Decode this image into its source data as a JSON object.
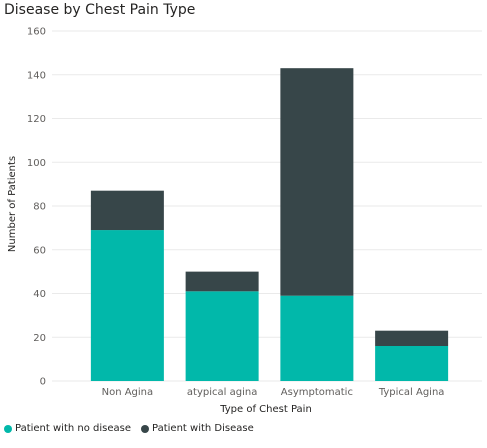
{
  "chart_data": {
    "type": "bar",
    "stacked": true,
    "title": "Disease by Chest Pain Type",
    "xlabel": "Type of Chest Pain",
    "ylabel": "Number of Patients",
    "categories": [
      "Non Agina",
      "atypical agina",
      "Asymptomatic",
      "Typical Agina"
    ],
    "series": [
      {
        "name": "Patient with no disease",
        "values": [
          69,
          41,
          39,
          16
        ],
        "color": "#01b8aa"
      },
      {
        "name": "Patient with Disease",
        "values": [
          18,
          9,
          104,
          7
        ],
        "color": "#374649"
      }
    ],
    "ylim": [
      0,
      160
    ],
    "yticks": [
      "0",
      "20",
      "40",
      "60",
      "80",
      "100",
      "120",
      "140",
      "160"
    ],
    "grid": true,
    "legend_position": "bottom-left"
  }
}
